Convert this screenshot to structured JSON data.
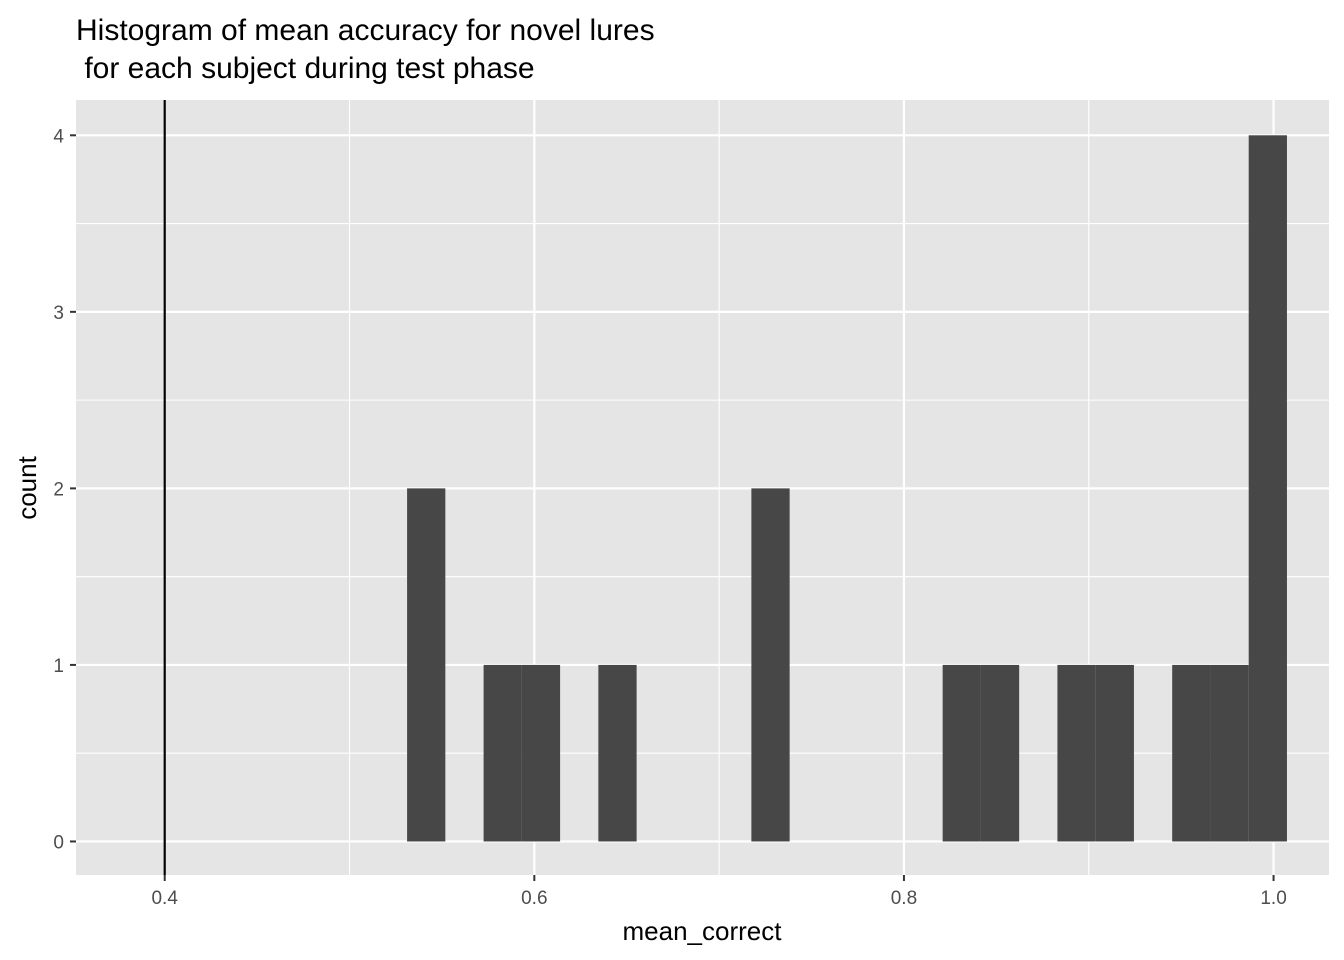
{
  "chart_data": {
    "type": "bar",
    "subtype": "histogram",
    "title_lines": [
      "Histogram of mean accuracy for novel lures",
      " for each subject during test phase"
    ],
    "xlabel": "mean_correct",
    "ylabel": "count",
    "xlim": [
      0.352,
      1.03
    ],
    "ylim": [
      -0.19,
      4.2
    ],
    "x_ticks": [
      {
        "value": 0.4,
        "label": "0.4"
      },
      {
        "value": 0.6,
        "label": "0.6"
      },
      {
        "value": 0.8,
        "label": "0.8"
      },
      {
        "value": 1.0,
        "label": "1.0"
      }
    ],
    "y_ticks": [
      {
        "value": 0,
        "label": "0"
      },
      {
        "value": 1,
        "label": "1"
      },
      {
        "value": 2,
        "label": "2"
      },
      {
        "value": 3,
        "label": "3"
      },
      {
        "value": 4,
        "label": "4"
      }
    ],
    "bin_width": 0.0207,
    "bins": [
      {
        "center": 0.5415,
        "count": 2
      },
      {
        "center": 0.5829,
        "count": 1
      },
      {
        "center": 0.6036,
        "count": 1
      },
      {
        "center": 0.645,
        "count": 1
      },
      {
        "center": 0.7278,
        "count": 2
      },
      {
        "center": 0.8313,
        "count": 1
      },
      {
        "center": 0.852,
        "count": 1
      },
      {
        "center": 0.8934,
        "count": 1
      },
      {
        "center": 0.9141,
        "count": 1
      },
      {
        "center": 0.9555,
        "count": 1
      },
      {
        "center": 0.9762,
        "count": 1
      },
      {
        "center": 0.9969,
        "count": 4
      }
    ],
    "vline": {
      "x": 0.4,
      "color": "#000000"
    },
    "bar_color": "#474747",
    "panel_background": "#e5e5e5",
    "grid_color": "#ffffff",
    "grid": true
  }
}
